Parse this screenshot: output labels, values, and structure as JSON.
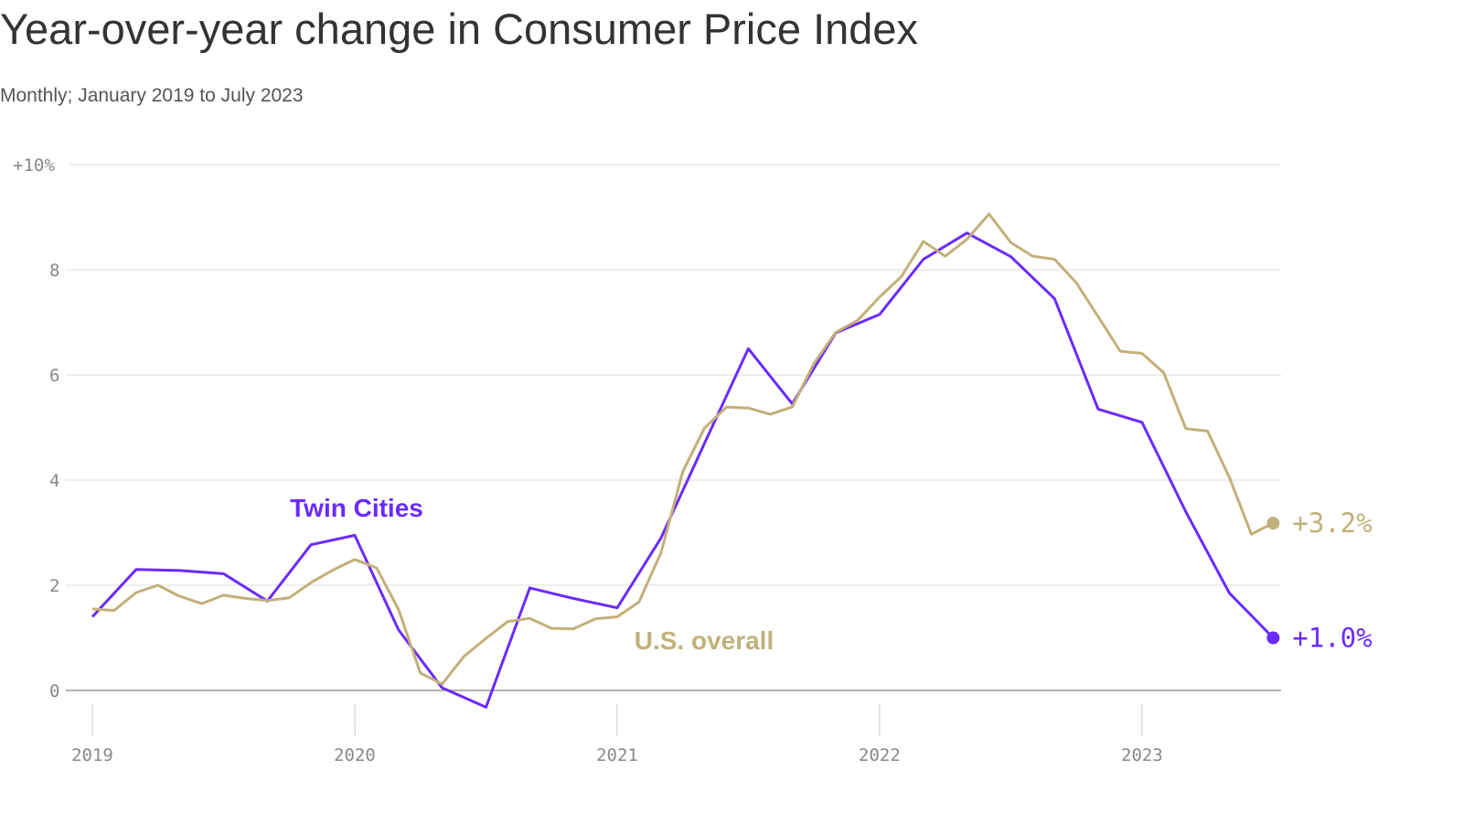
{
  "chart_data": {
    "type": "line",
    "title": "Year-over-year change in Consumer Price Index",
    "subtitle": "Monthly; January 2019 to July 2023",
    "xlim": [
      2019,
      2023.53
    ],
    "xticks": [
      2019,
      2020,
      2021,
      2022,
      2023
    ],
    "ylim": [
      0,
      10
    ],
    "yticks": [
      0,
      2,
      4,
      6,
      8,
      {
        "value": 10,
        "label": "+10%"
      }
    ],
    "grid": true,
    "series": [
      {
        "name": "Twin Cities",
        "color": "#6a2bff",
        "end_label": "+1.0%",
        "x": [
          2019,
          2019.167,
          2019.333,
          2019.5,
          2019.667,
          2019.833,
          2020,
          2020.167,
          2020.333,
          2020.5,
          2020.667,
          2020.833,
          2021,
          2021.167,
          2021.333,
          2021.5,
          2021.667,
          2021.833,
          2022,
          2022.167,
          2022.333,
          2022.5,
          2022.667,
          2022.833,
          2023,
          2023.167,
          2023.333,
          2023.5
        ],
        "values": [
          1.4,
          2.3,
          2.28,
          2.22,
          1.7,
          2.77,
          2.95,
          1.15,
          0.05,
          -0.32,
          1.95,
          1.75,
          1.57,
          2.9,
          4.7,
          6.5,
          5.45,
          6.8,
          7.15,
          8.2,
          8.7,
          8.25,
          7.45,
          5.35,
          5.1,
          3.4,
          1.85,
          1.0
        ]
      },
      {
        "name": "U.S. overall",
        "color": "#c2b07a",
        "end_label": "+3.2%",
        "x": [
          2019,
          2019.083,
          2019.167,
          2019.25,
          2019.333,
          2019.417,
          2019.5,
          2019.583,
          2019.667,
          2019.75,
          2019.833,
          2019.917,
          2020,
          2020.083,
          2020.167,
          2020.25,
          2020.333,
          2020.417,
          2020.5,
          2020.583,
          2020.667,
          2020.75,
          2020.833,
          2020.917,
          2021,
          2021.083,
          2021.167,
          2021.25,
          2021.333,
          2021.417,
          2021.5,
          2021.583,
          2021.667,
          2021.75,
          2021.833,
          2021.917,
          2022,
          2022.083,
          2022.167,
          2022.25,
          2022.333,
          2022.417,
          2022.5,
          2022.583,
          2022.667,
          2022.75,
          2022.833,
          2022.917,
          2023,
          2023.083,
          2023.167,
          2023.25,
          2023.333,
          2023.417,
          2023.5
        ],
        "values": [
          1.55,
          1.52,
          1.86,
          2.0,
          1.79,
          1.65,
          1.81,
          1.75,
          1.71,
          1.76,
          2.05,
          2.29,
          2.49,
          2.33,
          1.54,
          0.33,
          0.12,
          0.65,
          0.99,
          1.31,
          1.37,
          1.18,
          1.17,
          1.36,
          1.4,
          1.68,
          2.62,
          4.16,
          4.99,
          5.39,
          5.37,
          5.25,
          5.39,
          6.22,
          6.81,
          7.04,
          7.48,
          7.87,
          8.54,
          8.26,
          8.58,
          9.06,
          8.52,
          8.26,
          8.2,
          7.75,
          7.11,
          6.45,
          6.41,
          6.04,
          4.98,
          4.93,
          4.05,
          2.97,
          3.18
        ]
      }
    ]
  }
}
